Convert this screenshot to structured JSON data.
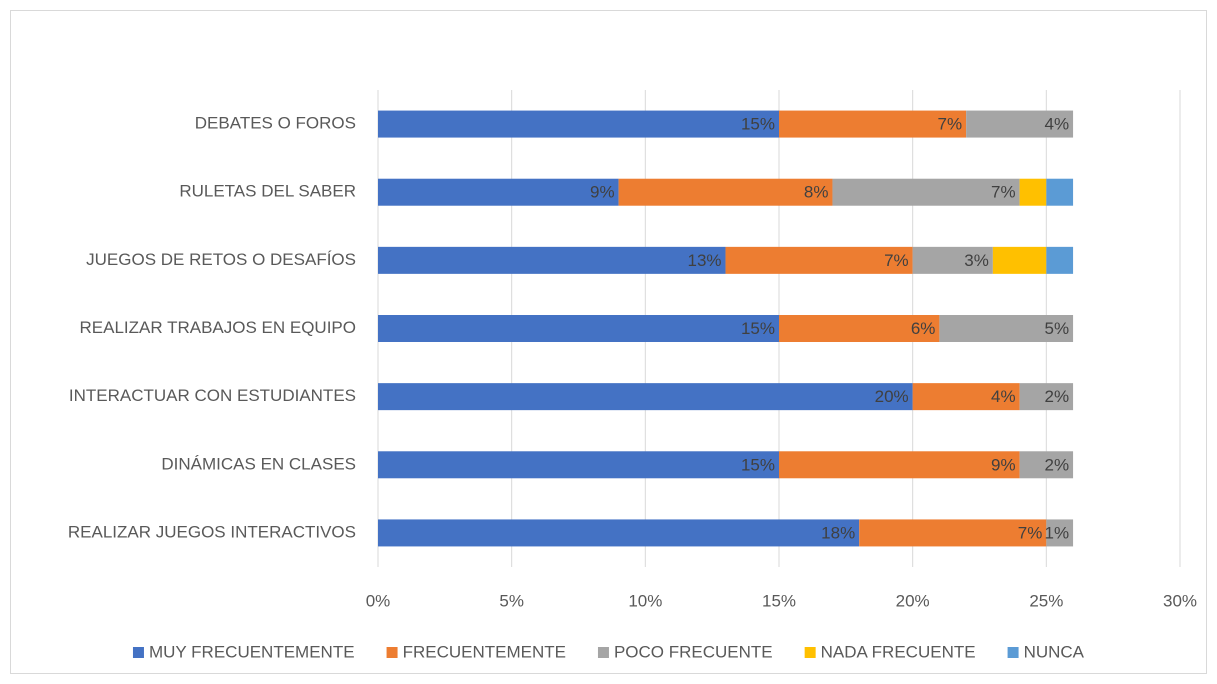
{
  "chart_data": {
    "type": "stacked_bar_horizontal",
    "categories": [
      "DEBATES O FOROS",
      "RULETAS DEL SABER",
      "JUEGOS DE RETOS O DESAFÍOS",
      "REALIZAR TRABAJOS EN EQUIPO",
      "INTERACTUAR CON ESTUDIANTES",
      "DINÁMICAS EN CLASES",
      "REALIZAR JUEGOS INTERACTIVOS"
    ],
    "series": [
      {
        "name": "MUY FRECUENTEMENTE",
        "color": "#4472c4",
        "values": [
          15,
          9,
          13,
          15,
          20,
          15,
          18
        ],
        "value_labels": [
          "15%",
          "9%",
          "13%",
          "15%",
          "20%",
          "15%",
          "18%"
        ]
      },
      {
        "name": "FRECUENTEMENTE",
        "color": "#ed7d31",
        "values": [
          7,
          8,
          7,
          6,
          4,
          9,
          7
        ],
        "value_labels": [
          "7%",
          "8%",
          "7%",
          "6%",
          "4%",
          "9%",
          "7%"
        ]
      },
      {
        "name": "POCO FRECUENTE",
        "color": "#a5a5a5",
        "values": [
          4,
          7,
          3,
          5,
          2,
          2,
          1
        ],
        "value_labels": [
          "4%",
          "7%",
          "3%",
          "5%",
          "2%",
          "2%",
          "1%"
        ]
      },
      {
        "name": "NADA FRECUENTE",
        "color": "#ffc000",
        "values": [
          null,
          1,
          2,
          null,
          null,
          null,
          null
        ],
        "value_labels": [
          null,
          null,
          null,
          null,
          null,
          null,
          null
        ]
      },
      {
        "name": "NUNCA",
        "color": "#5b9bd5",
        "values": [
          null,
          1,
          1,
          null,
          null,
          null,
          null
        ],
        "value_labels": [
          null,
          null,
          null,
          null,
          null,
          null,
          null
        ]
      }
    ],
    "xlim": [
      0,
      30
    ],
    "xticks": [
      {
        "value": 0,
        "label": "0%"
      },
      {
        "value": 5,
        "label": "5%"
      },
      {
        "value": 10,
        "label": "10%"
      },
      {
        "value": 15,
        "label": "15%"
      },
      {
        "value": 20,
        "label": "20%"
      },
      {
        "value": 25,
        "label": "25%"
      },
      {
        "value": 30,
        "label": "30%"
      }
    ],
    "grid": true,
    "legend": "bottom"
  }
}
